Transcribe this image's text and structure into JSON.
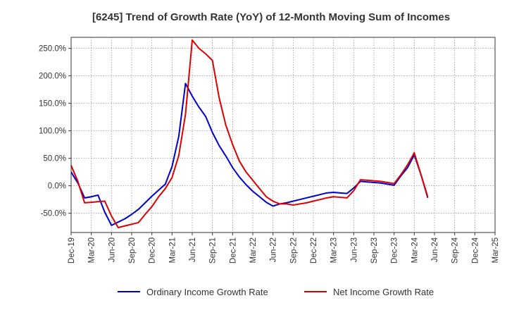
{
  "chart_data": {
    "type": "line",
    "title": "[6245]  Trend of Growth Rate (YoY) of 12-Month Moving Sum of Incomes",
    "xlabel": "",
    "ylabel": "",
    "ylim": [
      -85,
      270
    ],
    "y_ticks": [
      -50,
      0,
      50,
      100,
      150,
      200,
      250
    ],
    "y_tick_labels": [
      "-50.0%",
      "0.0%",
      "50.0%",
      "100.0%",
      "150.0%",
      "200.0%",
      "250.0%"
    ],
    "x_tick_labels": [
      "Dec-19",
      "Mar-20",
      "Jun-20",
      "Sep-20",
      "Dec-20",
      "Mar-21",
      "Jun-21",
      "Sep-21",
      "Dec-21",
      "Mar-22",
      "Jun-22",
      "Sep-22",
      "Dec-22",
      "Mar-23",
      "Jun-23",
      "Sep-23",
      "Dec-23",
      "Mar-24",
      "Jun-24",
      "Sep-24",
      "Dec-24",
      "Mar-25"
    ],
    "grid": true,
    "legend_position": "bottom",
    "x_start": "Dec-19",
    "series": [
      {
        "name": "Ordinary Income Growth Rate",
        "color": "#0000cc",
        "values": [
          25,
          5,
          -22,
          -20,
          -17,
          -48,
          -72,
          -66,
          -60,
          -52,
          -43,
          -31,
          -19,
          -8,
          3,
          35,
          90,
          186,
          163,
          143,
          126,
          97,
          73,
          54,
          33,
          16,
          2,
          -10,
          -20,
          -30,
          -37,
          -33,
          -31,
          -28,
          -25,
          -22,
          -19,
          -16,
          -13,
          -12,
          -13,
          -14,
          -4,
          8,
          7,
          6,
          5,
          3,
          1,
          18,
          33,
          56,
          20,
          -22
        ]
      },
      {
        "name": "Net Income Growth Rate",
        "color": "#dd0000",
        "values": [
          37,
          8,
          -31,
          -30,
          -29,
          -28,
          -55,
          -76,
          -73,
          -70,
          -67,
          -52,
          -38,
          -20,
          -5,
          15,
          55,
          130,
          265,
          250,
          240,
          228,
          160,
          110,
          75,
          45,
          25,
          10,
          -5,
          -20,
          -28,
          -33,
          -33,
          -35,
          -33,
          -31,
          -28,
          -25,
          -22,
          -20,
          -21,
          -22,
          -9,
          11,
          10,
          9,
          8,
          6,
          4,
          20,
          38,
          60,
          20,
          -20
        ]
      }
    ]
  }
}
